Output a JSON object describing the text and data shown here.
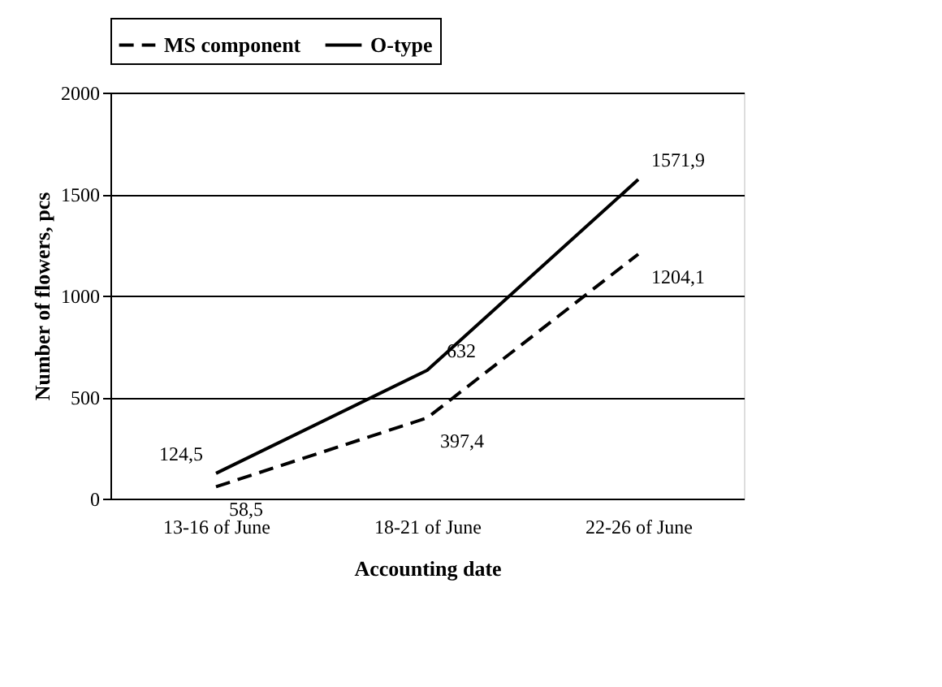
{
  "chart_data": {
    "type": "line",
    "xlabel": "Accounting date",
    "ylabel": "Number of flowers, pcs",
    "categories": [
      "13-16 of June",
      "18-21 of June",
      "22-26 of June"
    ],
    "series": [
      {
        "name": "MS component",
        "color": "#000000",
        "line_style": "dashed",
        "values": [
          58.5,
          397.4,
          1204.1
        ],
        "value_labels": [
          "58,5",
          "397,4",
          "1204,1"
        ]
      },
      {
        "name": "O-type",
        "color": "#000000",
        "line_style": "solid",
        "values": [
          124.5,
          632,
          1571.9
        ],
        "value_labels": [
          "124,5",
          "632",
          "1571,9"
        ]
      }
    ],
    "ylim": [
      0,
      2000
    ],
    "yticks": [
      0,
      500,
      1000,
      1500,
      2000
    ],
    "grid": "y",
    "legend": "top",
    "marker": "none"
  }
}
